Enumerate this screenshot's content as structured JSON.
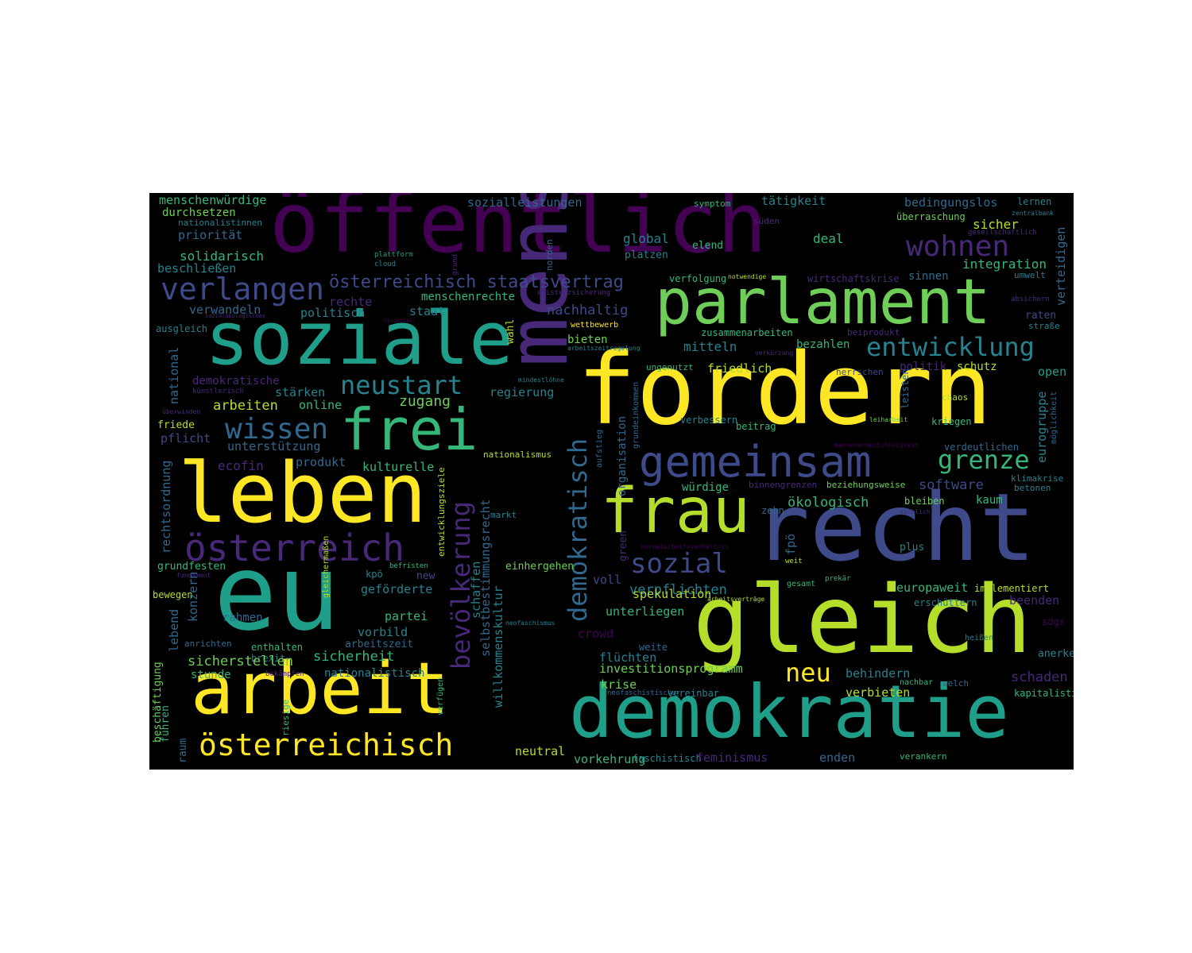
{
  "background": "#000000",
  "palette": [
    "#440154",
    "#482878",
    "#3e4a89",
    "#31688e",
    "#26828e",
    "#1f9e89",
    "#35b779",
    "#6ece58",
    "#b5de2b",
    "#fde725"
  ],
  "words": [
    {
      "text": "öffentlich",
      "color": "#440154"
    },
    {
      "text": "soziale",
      "color": "#1f9e89"
    },
    {
      "text": "parlament",
      "color": "#6ece58"
    },
    {
      "text": "fordern",
      "color": "#fde725"
    },
    {
      "text": "mensch",
      "color": "#482878"
    },
    {
      "text": "recht",
      "color": "#3e4a89"
    },
    {
      "text": "gleich",
      "color": "#b5de2b"
    },
    {
      "text": "demokratie",
      "color": "#1f9e89"
    },
    {
      "text": "eu",
      "color": "#1f9e89"
    },
    {
      "text": "leben",
      "color": "#fde725"
    },
    {
      "text": "arbeit",
      "color": "#fde725"
    },
    {
      "text": "frei",
      "color": "#35b779"
    },
    {
      "text": "frau",
      "color": "#b5de2b"
    },
    {
      "text": "gemeinsam",
      "color": "#3e4a89"
    },
    {
      "text": "österreich",
      "color": "#482878"
    },
    {
      "text": "österreichisch",
      "color": "#fde725"
    },
    {
      "text": "verlangen",
      "color": "#3e4a89"
    },
    {
      "text": "wissen",
      "color": "#31688e"
    },
    {
      "text": "neustart",
      "color": "#26828e"
    },
    {
      "text": "wohnen",
      "color": "#482878"
    },
    {
      "text": "entwicklung",
      "color": "#26828e"
    },
    {
      "text": "grenze",
      "color": "#35b779"
    },
    {
      "text": "sozial",
      "color": "#3e4a89"
    },
    {
      "text": "bevölkerung",
      "color": "#482878"
    },
    {
      "text": "demokratisch",
      "color": "#31688e"
    },
    {
      "text": "neu",
      "color": "#fde725"
    },
    {
      "text": "österreichisch staatsvertrag",
      "color": "#3e4a89"
    },
    {
      "text": "menschenwürdige",
      "color": "#35b779"
    },
    {
      "text": "durchsetzen",
      "color": "#6ece58"
    },
    {
      "text": "nationalistinnen",
      "color": "#26828e"
    },
    {
      "text": "priorität",
      "color": "#31688e"
    },
    {
      "text": "solidarisch",
      "color": "#35b779"
    },
    {
      "text": "beschließen",
      "color": "#26828e"
    },
    {
      "text": "verwandeln",
      "color": "#31688e"
    },
    {
      "text": "rechte",
      "color": "#482878"
    },
    {
      "text": "politisch",
      "color": "#26828e"
    },
    {
      "text": "staat",
      "color": "#26828e"
    },
    {
      "text": "menschenrechte",
      "color": "#35b779"
    },
    {
      "text": "existenzsicherung",
      "color": "#482878"
    },
    {
      "text": "nachhaltig",
      "color": "#3e4a89"
    },
    {
      "text": "sozialleistungen",
      "color": "#31688e"
    },
    {
      "text": "symptom",
      "color": "#35b779"
    },
    {
      "text": "tätigkeit",
      "color": "#26828e"
    },
    {
      "text": "bedingungslos",
      "color": "#31688e"
    },
    {
      "text": "lernen",
      "color": "#26828e"
    },
    {
      "text": "süden",
      "color": "#482878"
    },
    {
      "text": "überraschung",
      "color": "#6ece58"
    },
    {
      "text": "zentralbank",
      "color": "#26828e"
    },
    {
      "text": "sicher",
      "color": "#b5de2b"
    },
    {
      "text": "gesellschaftlich",
      "color": "#482878"
    },
    {
      "text": "global",
      "color": "#26828e"
    },
    {
      "text": "elend",
      "color": "#35b779"
    },
    {
      "text": "deal",
      "color": "#35b779"
    },
    {
      "text": "platzen",
      "color": "#26828e"
    },
    {
      "text": "plattform",
      "color": "#1f9e89"
    },
    {
      "text": "cloud",
      "color": "#26828e"
    },
    {
      "text": "grund",
      "color": "#482878"
    },
    {
      "text": "norden",
      "color": "#31688e"
    },
    {
      "text": "integration",
      "color": "#35b779"
    },
    {
      "text": "verteidigen",
      "color": "#31688e"
    },
    {
      "text": "umwelt",
      "color": "#26828e"
    },
    {
      "text": "verfolgung",
      "color": "#35b779"
    },
    {
      "text": "notwendige",
      "color": "#b5de2b"
    },
    {
      "text": "wirtschaftskrise",
      "color": "#482878"
    },
    {
      "text": "sinnen",
      "color": "#31688e"
    },
    {
      "text": "absichern",
      "color": "#482878"
    },
    {
      "text": "raten",
      "color": "#3e4a89"
    },
    {
      "text": "straße",
      "color": "#26828e"
    },
    {
      "text": "sozialökologisches",
      "color": "#482878"
    },
    {
      "text": "finanziell",
      "color": "#440154"
    },
    {
      "text": "ausgleich",
      "color": "#26828e"
    },
    {
      "text": "wahl",
      "color": "#b5de2b"
    },
    {
      "text": "wettbewerb",
      "color": "#fde725"
    },
    {
      "text": "zusammenarbeiten",
      "color": "#35b779"
    },
    {
      "text": "beiprodukt",
      "color": "#482878"
    },
    {
      "text": "bieten",
      "color": "#6ece58"
    },
    {
      "text": "arbeitszeitregelung",
      "color": "#26828e"
    },
    {
      "text": "mitteln",
      "color": "#26828e"
    },
    {
      "text": "verkürzung",
      "color": "#482878"
    },
    {
      "text": "bezahlen",
      "color": "#35b779"
    },
    {
      "text": "national",
      "color": "#31688e"
    },
    {
      "text": "demokratische",
      "color": "#482878"
    },
    {
      "text": "künstlerisch",
      "color": "#482878"
    },
    {
      "text": "stärken",
      "color": "#26828e"
    },
    {
      "text": "arbeiten",
      "color": "#b5de2b"
    },
    {
      "text": "online",
      "color": "#35b779"
    },
    {
      "text": "zugang",
      "color": "#6ece58"
    },
    {
      "text": "regierung",
      "color": "#26828e"
    },
    {
      "text": "überwinden",
      "color": "#482878"
    },
    {
      "text": "friede",
      "color": "#b5de2b"
    },
    {
      "text": "pflicht",
      "color": "#3e4a89"
    },
    {
      "text": "unterstützung",
      "color": "#31688e"
    },
    {
      "text": "mindestlöhne",
      "color": "#26828e"
    },
    {
      "text": "ungenutzt",
      "color": "#35b779"
    },
    {
      "text": "friedlich",
      "color": "#b5de2b"
    },
    {
      "text": "herrschen",
      "color": "#3e4a89"
    },
    {
      "text": "politik",
      "color": "#482878"
    },
    {
      "text": "schutz",
      "color": "#b5de2b"
    },
    {
      "text": "open",
      "color": "#1f9e89"
    },
    {
      "text": "leisten",
      "color": "#31688e"
    },
    {
      "text": "chaos",
      "color": "#b5de2b"
    },
    {
      "text": "eurogruppe",
      "color": "#26828e"
    },
    {
      "text": "möglichkeit",
      "color": "#31688e"
    },
    {
      "text": "leiharbeit",
      "color": "#6ece58"
    },
    {
      "text": "kriegen",
      "color": "#35b779"
    },
    {
      "text": "beitrag",
      "color": "#35b779"
    },
    {
      "text": "verbessern",
      "color": "#26828e"
    },
    {
      "text": "massenarbeitslosigkeit",
      "color": "#440154"
    },
    {
      "text": "verdeutlichen",
      "color": "#31688e"
    },
    {
      "text": "organisation",
      "color": "#31688e"
    },
    {
      "text": "grundeinkommen",
      "color": "#31688e"
    },
    {
      "text": "aufstieg",
      "color": "#31688e"
    },
    {
      "text": "rechtsordnung",
      "color": "#31688e"
    },
    {
      "text": "ecofin",
      "color": "#482878"
    },
    {
      "text": "produkt",
      "color": "#31688e"
    },
    {
      "text": "kulturelle",
      "color": "#35b779"
    },
    {
      "text": "nationalismus",
      "color": "#b5de2b"
    },
    {
      "text": "entwicklungsziele",
      "color": "#b5de2b"
    },
    {
      "text": "selbstbestimmungsrecht",
      "color": "#31688e"
    },
    {
      "text": "willkommenskultur",
      "color": "#26828e"
    },
    {
      "text": "schaffen",
      "color": "#26828e"
    },
    {
      "text": "würdige",
      "color": "#35b779"
    },
    {
      "text": "binnengrenzen",
      "color": "#482878"
    },
    {
      "text": "beziehungsweise",
      "color": "#6ece58"
    },
    {
      "text": "software",
      "color": "#3e4a89"
    },
    {
      "text": "klimakrise",
      "color": "#26828e"
    },
    {
      "text": "betonen",
      "color": "#26828e"
    },
    {
      "text": "ökologisch",
      "color": "#35b779"
    },
    {
      "text": "zehn",
      "color": "#31688e"
    },
    {
      "text": "bleiben",
      "color": "#6ece58"
    },
    {
      "text": "kaum",
      "color": "#35b779"
    },
    {
      "text": "sachlich",
      "color": "#482878"
    },
    {
      "text": "markt",
      "color": "#26828e"
    },
    {
      "text": "green",
      "color": "#482878"
    },
    {
      "text": "fpö",
      "color": "#31688e"
    },
    {
      "text": "normalarbeitsverhältnis",
      "color": "#440154"
    },
    {
      "text": "plus",
      "color": "#26828e"
    },
    {
      "text": "weit",
      "color": "#b5de2b"
    },
    {
      "text": "grundfesten",
      "color": "#35b779"
    },
    {
      "text": "fundament",
      "color": "#482878"
    },
    {
      "text": "gleichermaßen",
      "color": "#b5de2b"
    },
    {
      "text": "befristen",
      "color": "#35b779"
    },
    {
      "text": "kpö",
      "color": "#26828e"
    },
    {
      "text": "new",
      "color": "#3e4a89"
    },
    {
      "text": "einhergehen",
      "color": "#6ece58"
    },
    {
      "text": "voll",
      "color": "#3e4a89"
    },
    {
      "text": "gesamt",
      "color": "#35b779"
    },
    {
      "text": "prekär",
      "color": "#35b779"
    },
    {
      "text": "implementiert",
      "color": "#b5de2b"
    },
    {
      "text": "bewegen",
      "color": "#b5de2b"
    },
    {
      "text": "konzern",
      "color": "#31688e"
    },
    {
      "text": "geförderte",
      "color": "#26828e"
    },
    {
      "text": "verpflichten",
      "color": "#26828e"
    },
    {
      "text": "arbeitsverträge",
      "color": "#b5de2b"
    },
    {
      "text": "spekulation",
      "color": "#b5de2b"
    },
    {
      "text": "europaweit",
      "color": "#35b779"
    },
    {
      "text": "erschüttern",
      "color": "#26828e"
    },
    {
      "text": "beenden",
      "color": "#482878"
    },
    {
      "text": "rahmen",
      "color": "#31688e"
    },
    {
      "text": "partei",
      "color": "#35b779"
    },
    {
      "text": "unterliegen",
      "color": "#35b779"
    },
    {
      "text": "sdgs",
      "color": "#440154"
    },
    {
      "text": "lebend",
      "color": "#31688e"
    },
    {
      "text": "vorbild",
      "color": "#26828e"
    },
    {
      "text": "arbeitszeit",
      "color": "#31688e"
    },
    {
      "text": "neofaschismus",
      "color": "#26828e"
    },
    {
      "text": "crowd",
      "color": "#440154"
    },
    {
      "text": "heißen",
      "color": "#26828e"
    },
    {
      "text": "anrichten",
      "color": "#31688e"
    },
    {
      "text": "enthalten",
      "color": "#35b779"
    },
    {
      "text": "brexit",
      "color": "#26828e"
    },
    {
      "text": "weite",
      "color": "#31688e"
    },
    {
      "text": "flüchten",
      "color": "#26828e"
    },
    {
      "text": "anerkennen",
      "color": "#26828e"
    },
    {
      "text": "sicherstellen",
      "color": "#6ece58"
    },
    {
      "text": "sicherheit",
      "color": "#35b779"
    },
    {
      "text": "investitionsprogramm",
      "color": "#6ece58"
    },
    {
      "text": "behindern",
      "color": "#26828e"
    },
    {
      "text": "stunde",
      "color": "#35b779"
    },
    {
      "text": "bekämpfen",
      "color": "#482878"
    },
    {
      "text": "nationalistisch",
      "color": "#26828e"
    },
    {
      "text": "verfügen",
      "color": "#35b779"
    },
    {
      "text": "krise",
      "color": "#6ece58"
    },
    {
      "text": "schaden",
      "color": "#482878"
    },
    {
      "text": "nachbar",
      "color": "#35b779"
    },
    {
      "text": "welch",
      "color": "#31688e"
    },
    {
      "text": "verbieten",
      "color": "#b5de2b"
    },
    {
      "text": "neofaschistischer",
      "color": "#31688e"
    },
    {
      "text": "vereinbar",
      "color": "#26828e"
    },
    {
      "text": "kapitalistisch",
      "color": "#35b779"
    },
    {
      "text": "führen",
      "color": "#35b779"
    },
    {
      "text": "beschäftigung",
      "color": "#6ece58"
    },
    {
      "text": "raum",
      "color": "#31688e"
    },
    {
      "text": "riesige",
      "color": "#35b779"
    },
    {
      "text": "neutral",
      "color": "#b5de2b"
    },
    {
      "text": "vorkehrung",
      "color": "#35b779"
    },
    {
      "text": "faschistisch",
      "color": "#26828e"
    },
    {
      "text": "feminismus",
      "color": "#482878"
    },
    {
      "text": "enden",
      "color": "#31688e"
    },
    {
      "text": "verankern",
      "color": "#35b779"
    }
  ]
}
